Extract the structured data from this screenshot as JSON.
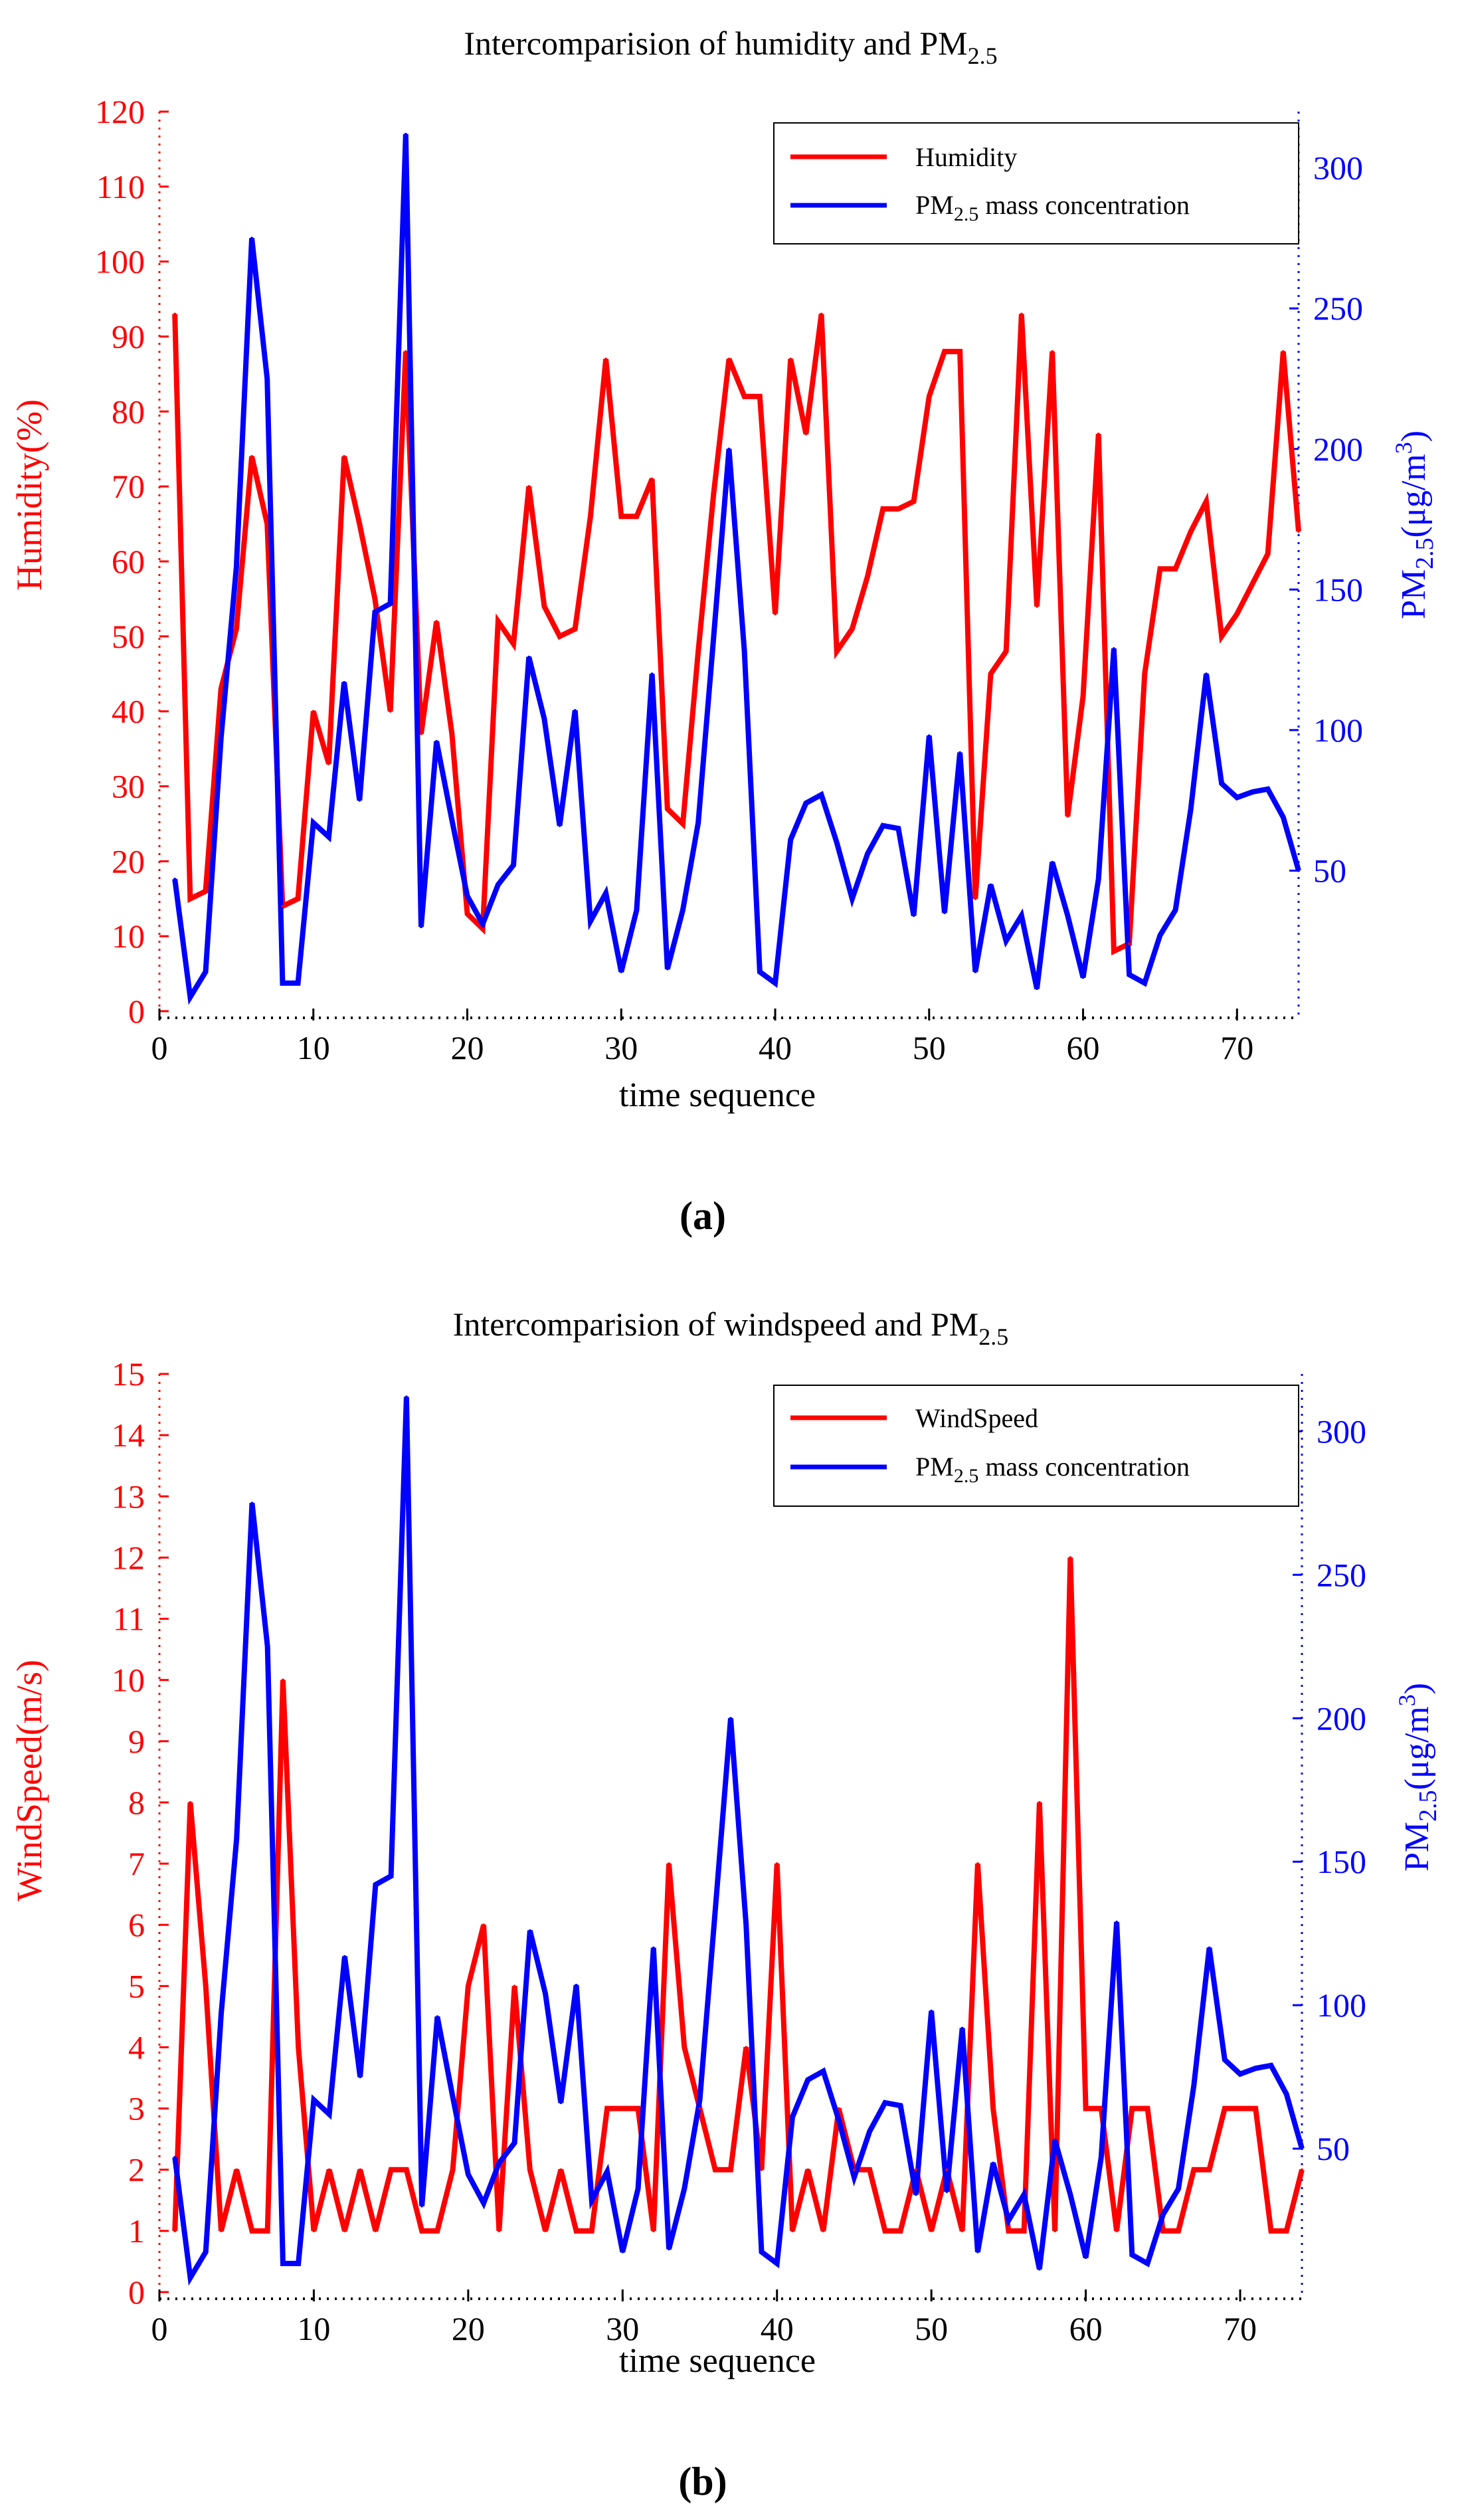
{
  "colors": {
    "left_axis": "#ff0000",
    "right_axis": "#0000ff",
    "pm_line": "#0000ff",
    "text": "#000000",
    "background": "#ffffff"
  },
  "shared_x": {
    "xlabel": "time sequence",
    "xlim": [
      0,
      74
    ],
    "xticks": [
      0,
      10,
      20,
      30,
      40,
      50,
      60,
      70
    ]
  },
  "pm_label": {
    "main": "PM",
    "sub": "2.5",
    "unit_a": "(μg/m",
    "unit_sup": "3",
    "unit_b": ")"
  },
  "pm_series_name": {
    "main": "PM",
    "sub": "2.5",
    "rest": " mass concentration"
  },
  "pm_values": [
    47,
    5,
    14,
    97,
    158,
    275,
    225,
    10,
    10,
    67,
    62,
    117,
    75,
    142,
    145,
    312,
    30,
    96,
    68,
    41,
    31,
    45,
    52,
    126,
    104,
    66,
    107,
    32,
    42,
    14,
    36,
    120,
    15,
    36,
    67,
    133,
    200,
    128,
    14,
    10,
    61,
    74,
    77,
    60,
    40,
    56,
    66,
    65,
    34,
    98,
    35,
    92,
    14,
    45,
    25,
    34,
    8,
    53,
    34,
    12,
    47,
    129,
    13,
    10,
    27,
    36,
    72,
    120,
    81,
    76,
    78,
    79,
    69,
    50
  ],
  "chart_data": [
    {
      "type": "line",
      "caption": "(a)",
      "title": {
        "main": "Intercomparision of humidity and PM",
        "sub": "2.5"
      },
      "xlabel": "time sequence",
      "ylabel": "Humidity(%)",
      "ylabel_right": "PM2.5(μg/m3)",
      "xlim": [
        0,
        74
      ],
      "ylim": [
        0,
        120
      ],
      "ylim_right": [
        0,
        320
      ],
      "yticks": [
        0,
        10,
        20,
        30,
        40,
        50,
        60,
        70,
        80,
        90,
        100,
        110,
        120
      ],
      "yticks_right": [
        50,
        100,
        150,
        200,
        250,
        300
      ],
      "legend_position": "top-right",
      "series": [
        {
          "name": "Humidity",
          "axis": "left",
          "color": "#ff0000",
          "x": [
            1,
            2,
            3,
            4,
            5,
            6,
            7,
            8,
            9,
            10,
            11,
            12,
            13,
            14,
            15,
            16,
            17,
            18,
            19,
            20,
            21,
            22,
            23,
            24,
            25,
            26,
            27,
            28,
            29,
            30,
            31,
            32,
            33,
            34,
            35,
            36,
            37,
            38,
            39,
            40,
            41,
            42,
            43,
            44,
            45,
            46,
            47,
            48,
            49,
            50,
            51,
            52,
            53,
            54,
            55,
            56,
            57,
            58,
            59,
            60,
            61,
            62,
            63,
            64,
            65,
            66,
            67,
            68,
            69,
            70,
            71,
            72,
            73,
            74
          ],
          "values": [
            93,
            15,
            16,
            43,
            51,
            74,
            65,
            14,
            15,
            40,
            33,
            74,
            65,
            55,
            40,
            88,
            37,
            52,
            37,
            13,
            11,
            52,
            49,
            70,
            54,
            50,
            51,
            66,
            87,
            66,
            66,
            71,
            27,
            25,
            48,
            69,
            87,
            82,
            82,
            53,
            87,
            77,
            93,
            48,
            51,
            58,
            67,
            67,
            68,
            82,
            88,
            88,
            15,
            45,
            48,
            93,
            54,
            88,
            26,
            42,
            77,
            8,
            9,
            45,
            59,
            59,
            64,
            68,
            50,
            53,
            57,
            61,
            88,
            64
          ]
        },
        {
          "name": "PM2.5 mass concentration",
          "axis": "right",
          "color": "#0000ff",
          "values_ref": "pm_values"
        }
      ]
    },
    {
      "type": "line",
      "caption": "(b)",
      "title": {
        "main": "Intercomparision of windspeed and PM",
        "sub": "2.5"
      },
      "xlabel": "time sequence",
      "ylabel": "WindSpeed(m/s)",
      "ylabel_right": "PM2.5(μg/m3)",
      "xlim": [
        0,
        74
      ],
      "ylim": [
        0,
        15
      ],
      "ylim_right": [
        0,
        320
      ],
      "yticks": [
        0,
        1,
        2,
        3,
        4,
        5,
        6,
        7,
        8,
        9,
        10,
        11,
        12,
        13,
        14,
        15
      ],
      "yticks_right": [
        50,
        100,
        150,
        200,
        250,
        300
      ],
      "legend_position": "top-right",
      "series": [
        {
          "name": "WindSpeed",
          "axis": "left",
          "color": "#ff0000",
          "x": [
            1,
            2,
            3,
            4,
            5,
            6,
            7,
            8,
            9,
            10,
            11,
            12,
            13,
            14,
            15,
            16,
            17,
            18,
            19,
            20,
            21,
            22,
            23,
            24,
            25,
            26,
            27,
            28,
            29,
            30,
            31,
            32,
            33,
            34,
            35,
            36,
            37,
            38,
            39,
            40,
            41,
            42,
            43,
            44,
            45,
            46,
            47,
            48,
            49,
            50,
            51,
            52,
            53,
            54,
            55,
            56,
            57,
            58,
            59,
            60,
            61,
            62,
            63,
            64,
            65,
            66,
            67,
            68,
            69,
            70,
            71,
            72,
            73,
            74
          ],
          "values": [
            1,
            8,
            5,
            1,
            2,
            1,
            1,
            10,
            4,
            1,
            2,
            1,
            2,
            1,
            2,
            2,
            1,
            1,
            2,
            5,
            6,
            1,
            5,
            2,
            1,
            2,
            1,
            1,
            3,
            3,
            3,
            1,
            7,
            4,
            3,
            2,
            2,
            4,
            2,
            7,
            1,
            2,
            1,
            3,
            2,
            2,
            1,
            1,
            2,
            1,
            2,
            1,
            7,
            3,
            1,
            1,
            8,
            1,
            12,
            3,
            3,
            1,
            3,
            3,
            1,
            1,
            2,
            2,
            3,
            3,
            3,
            1,
            1,
            2
          ]
        },
        {
          "name": "PM2.5 mass concentration",
          "axis": "right",
          "color": "#0000ff",
          "values_ref": "pm_values"
        }
      ]
    }
  ]
}
